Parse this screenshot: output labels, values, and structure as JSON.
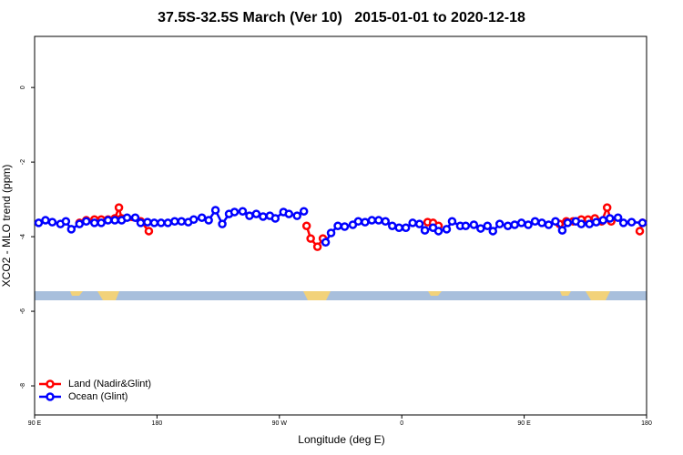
{
  "chart_data": {
    "type": "line",
    "title": "37.5S-32.5S March (Ver 10)   2015-01-01 to 2020-12-18",
    "x_label": "Longitude (deg E)",
    "y_label": "XCO2 - MLO trend (ppm)",
    "xlim": [
      90,
      540
    ],
    "xticks": [
      {
        "value": 90,
        "label": "90 E"
      },
      {
        "value": 180,
        "label": "180"
      },
      {
        "value": 270,
        "label": "90 W"
      },
      {
        "value": 360,
        "label": "0"
      },
      {
        "value": 450,
        "label": "90 E"
      },
      {
        "value": 540,
        "label": "180"
      }
    ],
    "ylim": [
      -8.78,
      1.37
    ],
    "yticks": [
      0,
      -2,
      -4,
      -6,
      -8
    ],
    "legend": "bottomleft",
    "series": [
      {
        "name": "Land (Nadir&Glint)",
        "color": "#ff0000",
        "x": [
          123,
          128,
          134,
          139,
          144,
          149,
          152,
          154,
          168,
          174,
          null,
          290,
          293,
          298,
          302,
          null,
          379,
          383,
          387,
          null,
          476,
          481,
          486,
          492,
          497,
          502,
          507,
          511,
          514,
          null,
          535,
          537
        ],
        "values": [
          -3.63,
          -3.56,
          -3.54,
          -3.54,
          -3.54,
          -3.51,
          -3.22,
          -3.51,
          -3.59,
          -3.85,
          null,
          -3.71,
          -4.05,
          -4.27,
          -4.05,
          null,
          -3.61,
          -3.63,
          -3.71,
          null,
          -3.66,
          -3.59,
          -3.59,
          -3.54,
          -3.54,
          -3.51,
          -3.59,
          -3.22,
          -3.59,
          null,
          -3.85,
          -3.63
        ]
      },
      {
        "name": "Ocean (Glint)",
        "color": "#0000ff",
        "x": [
          93,
          98,
          103,
          109,
          113,
          117,
          123,
          128,
          134,
          139,
          144,
          149,
          154,
          158,
          164,
          168,
          173,
          178,
          183,
          188,
          193,
          198,
          203,
          207,
          213,
          218,
          223,
          228,
          233,
          237,
          243,
          248,
          253,
          258,
          263,
          267,
          273,
          277,
          283,
          288,
          null,
          304,
          308,
          313,
          318,
          324,
          328,
          333,
          338,
          343,
          348,
          353,
          358,
          363,
          368,
          373,
          377,
          383,
          387,
          393,
          397,
          403,
          407,
          413,
          418,
          423,
          427,
          432,
          438,
          443,
          448,
          453,
          458,
          463,
          468,
          473,
          478,
          482,
          488,
          492,
          498,
          503,
          508,
          513,
          519,
          523,
          529,
          537
        ],
        "values": [
          -3.63,
          -3.56,
          -3.61,
          -3.66,
          -3.59,
          -3.8,
          -3.66,
          -3.59,
          -3.63,
          -3.63,
          -3.56,
          -3.56,
          -3.56,
          -3.49,
          -3.49,
          -3.63,
          -3.61,
          -3.63,
          -3.63,
          -3.63,
          -3.59,
          -3.59,
          -3.61,
          -3.54,
          -3.49,
          -3.56,
          -3.29,
          -3.66,
          -3.39,
          -3.34,
          -3.32,
          -3.44,
          -3.39,
          -3.46,
          -3.44,
          -3.51,
          -3.34,
          -3.39,
          -3.44,
          -3.32,
          null,
          -4.15,
          -3.9,
          -3.71,
          -3.73,
          -3.68,
          -3.59,
          -3.61,
          -3.56,
          -3.56,
          -3.59,
          -3.71,
          -3.76,
          -3.76,
          -3.63,
          -3.66,
          -3.83,
          -3.76,
          -3.85,
          -3.8,
          -3.59,
          -3.71,
          -3.71,
          -3.68,
          -3.78,
          -3.71,
          -3.85,
          -3.66,
          -3.71,
          -3.68,
          -3.63,
          -3.68,
          -3.59,
          -3.63,
          -3.68,
          -3.59,
          -3.83,
          -3.63,
          -3.59,
          -3.66,
          -3.66,
          -3.61,
          -3.56,
          -3.51,
          -3.49,
          -3.63,
          -3.61,
          -3.63
        ]
      }
    ]
  }
}
